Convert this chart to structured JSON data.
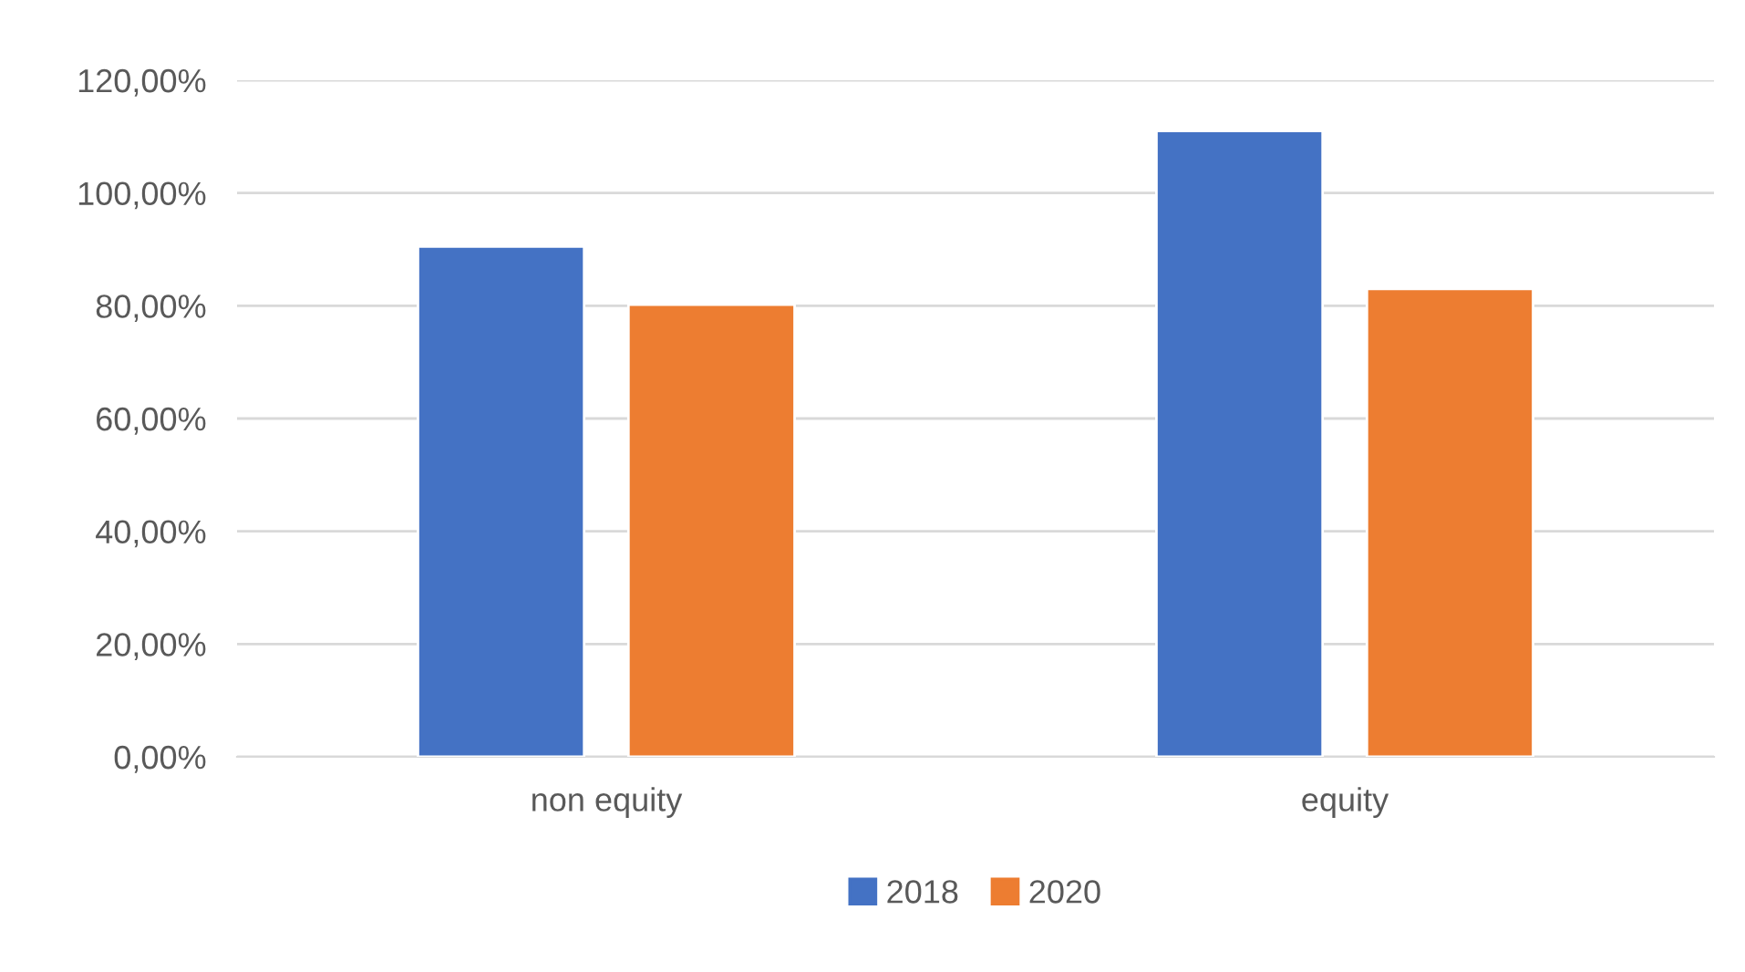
{
  "chart_data": {
    "type": "bar",
    "categories": [
      "non equity",
      "equity"
    ],
    "series": [
      {
        "name": "2018",
        "color": "#4472c4",
        "values": [
          90.5,
          111
        ]
      },
      {
        "name": "2020",
        "color": "#ed7d31",
        "values": [
          80.2,
          83
        ]
      }
    ],
    "ylim": [
      0,
      120
    ],
    "yticks": [
      {
        "value": 0,
        "label": "0,00%"
      },
      {
        "value": 20,
        "label": "20,00%"
      },
      {
        "value": 40,
        "label": "40,00%"
      },
      {
        "value": 60,
        "label": "60,00%"
      },
      {
        "value": 80,
        "label": "80,00%"
      },
      {
        "value": 100,
        "label": "100,00%"
      },
      {
        "value": 120,
        "label": "120,00%"
      }
    ],
    "grid": "y",
    "legend": "bottom"
  }
}
